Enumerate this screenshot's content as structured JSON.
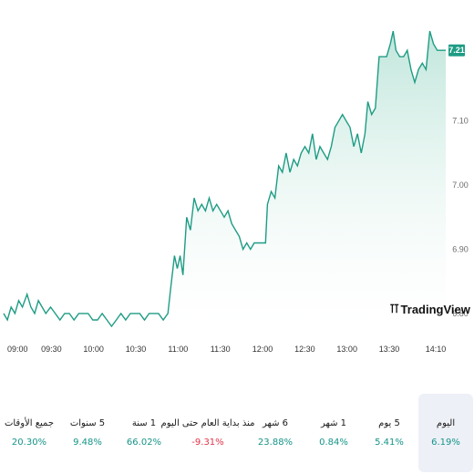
{
  "chart_data": {
    "type": "area",
    "y_ticks": [
      "6.80",
      "6.90",
      "7.00",
      "7.10"
    ],
    "x_ticks": [
      "09:00",
      "09:30",
      "10:00",
      "10:30",
      "11:00",
      "11:30",
      "12:00",
      "12:30",
      "13:00",
      "13:30",
      "14:10"
    ],
    "ylim": [
      6.78,
      7.26
    ],
    "last_value": "7.21",
    "line_color": "#1e9c84",
    "fill_color": "#cdebe2",
    "series": [
      {
        "values": [
          [
            0,
            6.8
          ],
          [
            0.08,
            6.79
          ],
          [
            0.16,
            6.81
          ],
          [
            0.24,
            6.8
          ],
          [
            0.32,
            6.82
          ],
          [
            0.4,
            6.81
          ],
          [
            0.5,
            6.83
          ],
          [
            0.58,
            6.81
          ],
          [
            0.66,
            6.8
          ],
          [
            0.74,
            6.82
          ],
          [
            0.82,
            6.81
          ],
          [
            0.9,
            6.8
          ],
          [
            1.0,
            6.81
          ],
          [
            1.1,
            6.8
          ],
          [
            1.2,
            6.79
          ],
          [
            1.3,
            6.8
          ],
          [
            1.4,
            6.8
          ],
          [
            1.5,
            6.79
          ],
          [
            1.6,
            6.8
          ],
          [
            1.7,
            6.8
          ],
          [
            1.8,
            6.8
          ],
          [
            1.9,
            6.79
          ],
          [
            2.0,
            6.79
          ],
          [
            2.1,
            6.8
          ],
          [
            2.2,
            6.79
          ],
          [
            2.3,
            6.78
          ],
          [
            2.4,
            6.79
          ],
          [
            2.5,
            6.8
          ],
          [
            2.6,
            6.79
          ],
          [
            2.7,
            6.8
          ],
          [
            2.8,
            6.8
          ],
          [
            2.9,
            6.8
          ],
          [
            3.0,
            6.79
          ],
          [
            3.1,
            6.8
          ],
          [
            3.2,
            6.8
          ],
          [
            3.3,
            6.8
          ],
          [
            3.4,
            6.79
          ],
          [
            3.5,
            6.8
          ],
          [
            3.56,
            6.84
          ],
          [
            3.64,
            6.89
          ],
          [
            3.7,
            6.87
          ],
          [
            3.76,
            6.89
          ],
          [
            3.82,
            6.86
          ],
          [
            3.9,
            6.95
          ],
          [
            3.98,
            6.93
          ],
          [
            4.06,
            6.98
          ],
          [
            4.14,
            6.96
          ],
          [
            4.22,
            6.97
          ],
          [
            4.3,
            6.96
          ],
          [
            4.38,
            6.98
          ],
          [
            4.46,
            6.96
          ],
          [
            4.54,
            6.97
          ],
          [
            4.62,
            6.96
          ],
          [
            4.7,
            6.95
          ],
          [
            4.78,
            6.96
          ],
          [
            4.86,
            6.94
          ],
          [
            4.94,
            6.93
          ],
          [
            5.02,
            6.92
          ],
          [
            5.1,
            6.9
          ],
          [
            5.18,
            6.91
          ],
          [
            5.26,
            6.9
          ],
          [
            5.34,
            6.91
          ],
          [
            5.42,
            6.91
          ],
          [
            5.5,
            6.91
          ],
          [
            5.58,
            6.91
          ],
          [
            5.62,
            6.97
          ],
          [
            5.7,
            6.99
          ],
          [
            5.78,
            6.98
          ],
          [
            5.86,
            7.03
          ],
          [
            5.94,
            7.02
          ],
          [
            6.02,
            7.05
          ],
          [
            6.1,
            7.02
          ],
          [
            6.18,
            7.04
          ],
          [
            6.26,
            7.03
          ],
          [
            6.34,
            7.05
          ],
          [
            6.42,
            7.06
          ],
          [
            6.5,
            7.05
          ],
          [
            6.58,
            7.08
          ],
          [
            6.66,
            7.04
          ],
          [
            6.74,
            7.06
          ],
          [
            6.82,
            7.05
          ],
          [
            6.9,
            7.04
          ],
          [
            6.98,
            7.06
          ],
          [
            7.06,
            7.09
          ],
          [
            7.14,
            7.1
          ],
          [
            7.22,
            7.11
          ],
          [
            7.3,
            7.1
          ],
          [
            7.38,
            7.09
          ],
          [
            7.46,
            7.06
          ],
          [
            7.54,
            7.08
          ],
          [
            7.62,
            7.05
          ],
          [
            7.7,
            7.08
          ],
          [
            7.76,
            7.13
          ],
          [
            7.84,
            7.11
          ],
          [
            7.92,
            7.12
          ],
          [
            8.0,
            7.2
          ],
          [
            8.08,
            7.2
          ],
          [
            8.16,
            7.2
          ],
          [
            8.24,
            7.22
          ],
          [
            8.3,
            7.24
          ],
          [
            8.36,
            7.21
          ],
          [
            8.44,
            7.2
          ],
          [
            8.52,
            7.2
          ],
          [
            8.6,
            7.21
          ],
          [
            8.68,
            7.18
          ],
          [
            8.76,
            7.16
          ],
          [
            8.84,
            7.18
          ],
          [
            8.92,
            7.19
          ],
          [
            9.0,
            7.18
          ],
          [
            9.08,
            7.24
          ],
          [
            9.16,
            7.22
          ],
          [
            9.24,
            7.21
          ],
          [
            9.32,
            7.21
          ],
          [
            9.42,
            7.21
          ]
        ]
      }
    ]
  },
  "watermark": "TradingView",
  "periods": [
    {
      "label": "اليوم",
      "value": "6.19%",
      "tone": "pos",
      "active": true
    },
    {
      "label": "5 يوم",
      "value": "5.41%",
      "tone": "pos",
      "active": false
    },
    {
      "label": "1 شهر",
      "value": "0.84%",
      "tone": "pos",
      "active": false
    },
    {
      "label": "6 شهر",
      "value": "23.88%",
      "tone": "pos",
      "active": false
    },
    {
      "label": "منذ بداية العام حتى اليوم",
      "value": "-9.31%",
      "tone": "neg",
      "active": false
    },
    {
      "label": "1 سنة",
      "value": "66.02%",
      "tone": "pos",
      "active": false
    },
    {
      "label": "5 سنوات",
      "value": "9.48%",
      "tone": "pos",
      "active": false
    },
    {
      "label": "جميع الأوقات",
      "value": "20.30%",
      "tone": "pos",
      "active": false
    }
  ]
}
